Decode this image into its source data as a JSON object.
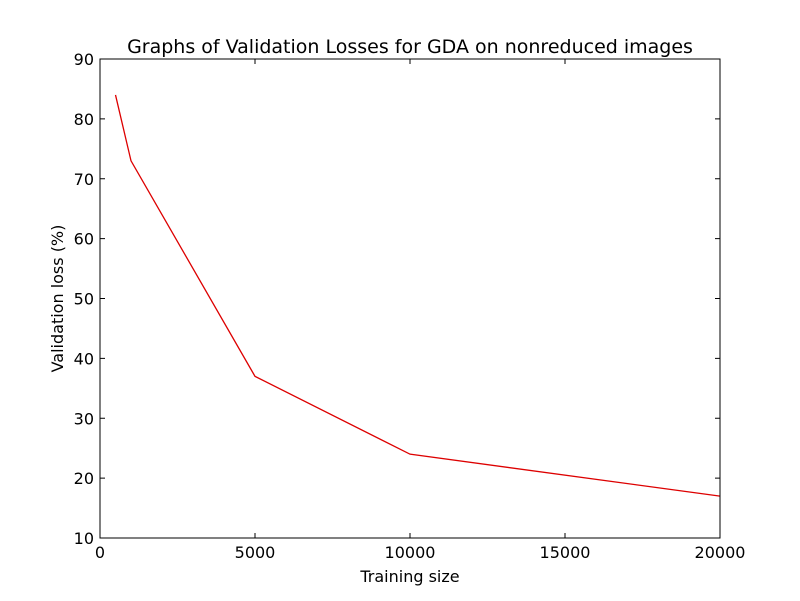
{
  "chart_data": {
    "type": "line",
    "title": "Graphs of Validation Losses for GDA on nonreduced images",
    "xlabel": "Training size",
    "ylabel": "Validation loss (%)",
    "xlim": [
      0,
      20000
    ],
    "ylim": [
      10,
      90
    ],
    "xticks": [
      0,
      5000,
      10000,
      15000,
      20000
    ],
    "xtick_labels": [
      "0",
      "5000",
      "10000",
      "15000",
      "20000"
    ],
    "yticks": [
      10,
      20,
      30,
      40,
      50,
      60,
      70,
      80,
      90
    ],
    "ytick_labels": [
      "10",
      "20",
      "30",
      "40",
      "50",
      "60",
      "70",
      "80",
      "90"
    ],
    "grid": false,
    "legend": "none",
    "series": [
      {
        "color": "#dd0000",
        "x": [
          500,
          1000,
          5000,
          10000,
          20000
        ],
        "y": [
          84,
          73,
          37,
          24,
          17
        ]
      }
    ]
  }
}
